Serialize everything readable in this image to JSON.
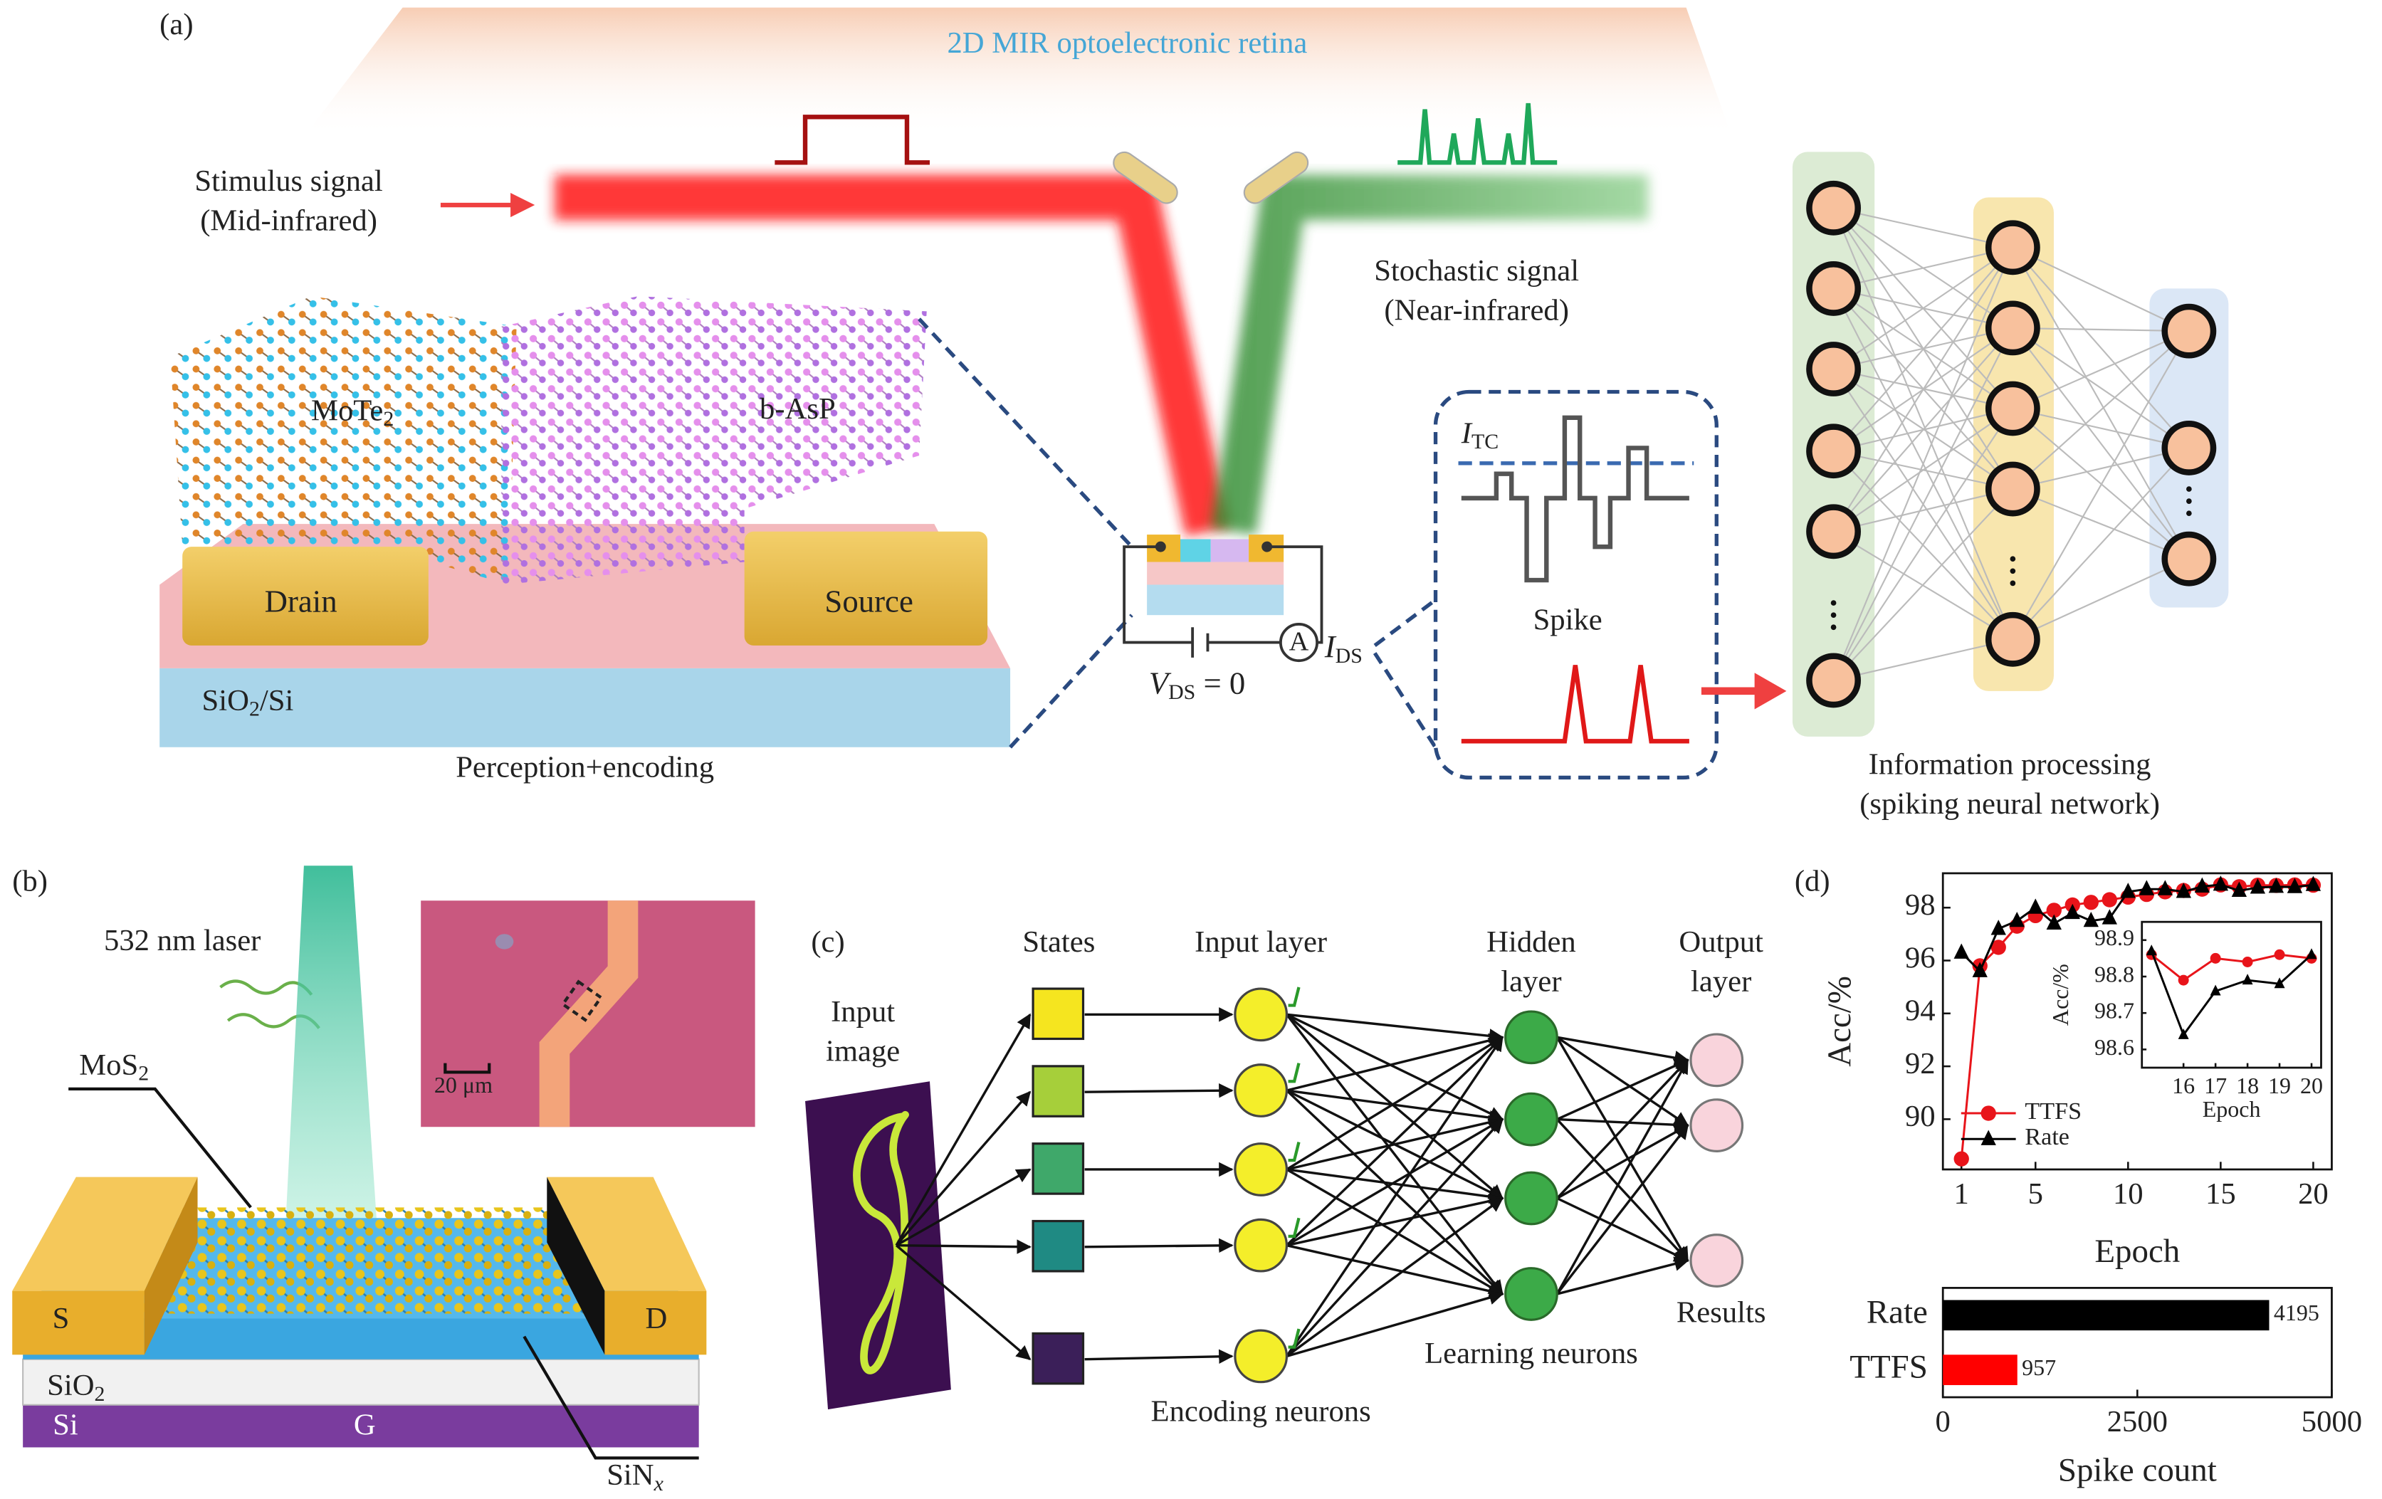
{
  "panels": {
    "a": {
      "label": "(a)",
      "title": "2D MIR optoelectronic retina",
      "stimulus": [
        "Stimulus signal",
        "(Mid-infrared)"
      ],
      "stochastic": [
        "Stochastic signal",
        "(Near-infrared)"
      ],
      "mote2": [
        "MoTe",
        "2"
      ],
      "basp": "b-AsP",
      "drain": "Drain",
      "source": "Source",
      "substrate": [
        "SiO",
        "2",
        "/Si"
      ],
      "perception": "Perception+encoding",
      "itc": [
        "I",
        "TC"
      ],
      "spike": "Spike",
      "vds": [
        "V",
        "DS",
        " = 0"
      ],
      "ids": [
        "I",
        "DS"
      ],
      "ammeter": "A",
      "snn": [
        "Information processing",
        "(spiking neural network)"
      ]
    },
    "b": {
      "label": "(b)",
      "laser": "532 nm laser",
      "mos2": [
        "MoS",
        "2"
      ],
      "scale": "20 μm",
      "s": "S",
      "d": "D",
      "sio2": [
        "SiO",
        "2"
      ],
      "si": "Si",
      "g": "G",
      "sinx": [
        "SiN",
        "x"
      ]
    },
    "c": {
      "label": "(c)",
      "states": "States",
      "input_layer": "Input layer",
      "hidden_layer": [
        "Hidden",
        "layer"
      ],
      "output_layer": [
        "Output",
        "layer"
      ],
      "input_image": [
        "Input",
        "image"
      ],
      "encoding": "Encoding neurons",
      "learning": "Learning neurons",
      "results": "Results"
    },
    "d": {
      "label": "(d)"
    }
  },
  "chart_data": [
    {
      "type": "line",
      "x": [
        1,
        2,
        3,
        4,
        5,
        6,
        7,
        8,
        9,
        10,
        11,
        12,
        13,
        14,
        15,
        16,
        17,
        18,
        19,
        20
      ],
      "series": [
        {
          "name": "TTFS",
          "color": "#e8141a",
          "marker": "circle",
          "values": [
            88.5,
            95.8,
            96.5,
            97.3,
            97.7,
            97.9,
            98.1,
            98.2,
            98.3,
            98.4,
            98.5,
            98.6,
            98.65,
            98.7,
            98.86,
            98.79,
            98.85,
            98.84,
            98.86,
            98.85
          ]
        },
        {
          "name": "Rate",
          "color": "#000000",
          "marker": "triangle",
          "values": [
            96.3,
            95.6,
            97.2,
            97.5,
            98.0,
            97.4,
            97.8,
            97.5,
            97.6,
            98.6,
            98.7,
            98.7,
            98.6,
            98.8,
            98.87,
            98.64,
            98.76,
            98.79,
            98.78,
            98.86
          ]
        }
      ],
      "xlim": [
        0,
        21
      ],
      "ylim": [
        88.1,
        99.3
      ],
      "xticks": [
        1,
        5,
        10,
        15,
        20
      ],
      "yticks": [
        90,
        92,
        94,
        96,
        98
      ],
      "x_label": "Epoch",
      "y_label": "Acc/%",
      "legend": "lower left"
    },
    {
      "type": "line",
      "x": [
        15,
        16,
        17,
        18,
        19,
        20
      ],
      "series": [
        {
          "color": "#e8141a",
          "marker": "circle",
          "values": [
            98.86,
            98.79,
            98.85,
            98.84,
            98.86,
            98.85
          ]
        },
        {
          "color": "#000000",
          "marker": "triangle",
          "values": [
            98.87,
            98.64,
            98.76,
            98.79,
            98.78,
            98.86
          ]
        }
      ],
      "xlim": [
        14.7,
        20.3
      ],
      "ylim": [
        98.55,
        98.95
      ],
      "xticks": [
        16,
        17,
        18,
        19,
        20
      ],
      "yticks": [
        98.6,
        98.7,
        98.8,
        98.9
      ],
      "x_label": "Epoch",
      "y_label": "Acc/%"
    },
    {
      "type": "bar",
      "orientation": "horizontal",
      "categories": [
        "Rate",
        "TTFS"
      ],
      "values": [
        4195,
        957
      ],
      "colors": [
        "#000000",
        "#ff0000"
      ],
      "xlim": [
        0,
        5000
      ],
      "xticks": [
        0,
        2500,
        5000
      ],
      "x_label": "Spike count"
    }
  ]
}
